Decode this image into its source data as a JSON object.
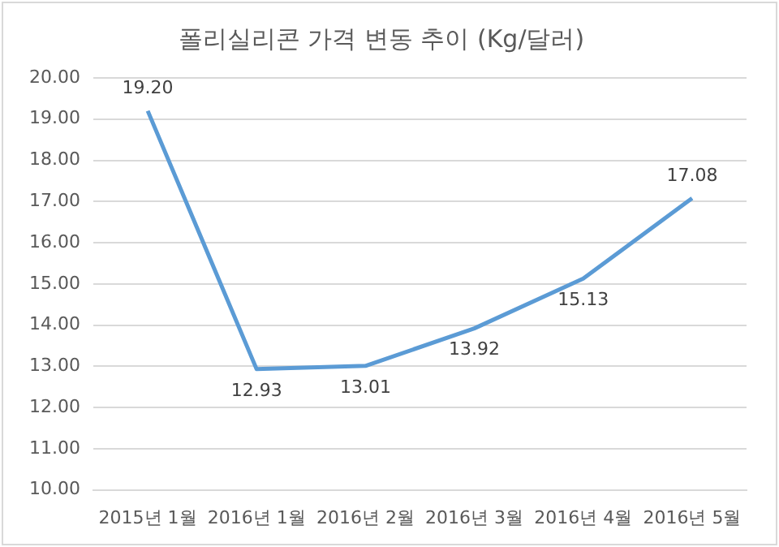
{
  "chart_data": {
    "type": "line",
    "title": "폴리실리콘 가격 변동 추이 (Kg/달러)",
    "categories": [
      "2015년 1월",
      "2016년 1월",
      "2016년 2월",
      "2016년 3월",
      "2016년 4월",
      "2016년 5월"
    ],
    "series": [
      {
        "color": "#5b9bd5",
        "values": [
          19.2,
          12.93,
          13.01,
          13.92,
          15.13,
          17.08
        ],
        "value_labels": [
          "19.20",
          "12.93",
          "13.01",
          "13.92",
          "15.13",
          "17.08"
        ]
      }
    ],
    "ylim": [
      10,
      20
    ],
    "yticks": [
      {
        "value": 10,
        "label": "10.00"
      },
      {
        "value": 11,
        "label": "11.00"
      },
      {
        "value": 12,
        "label": "12.00"
      },
      {
        "value": 13,
        "label": "13.00"
      },
      {
        "value": 14,
        "label": "14.00"
      },
      {
        "value": 15,
        "label": "15.00"
      },
      {
        "value": 16,
        "label": "16.00"
      },
      {
        "value": 17,
        "label": "17.00"
      },
      {
        "value": 18,
        "label": "18.00"
      },
      {
        "value": 19,
        "label": "19.00"
      },
      {
        "value": 20,
        "label": "20.00"
      }
    ],
    "grid": "y",
    "marker": "none",
    "line_style": "solid",
    "legend": false
  }
}
